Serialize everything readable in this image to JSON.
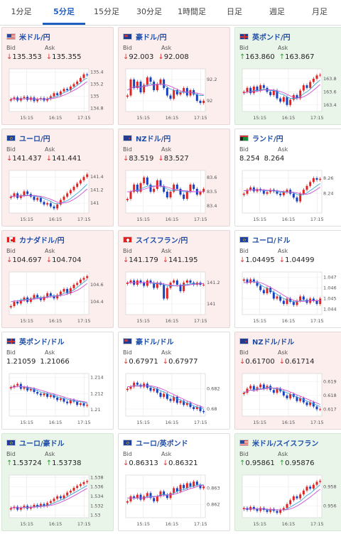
{
  "tabs": [
    "1分足",
    "5分足",
    "15分足",
    "30分足",
    "1時間足",
    "日足",
    "週足",
    "月足"
  ],
  "active_tab": 1,
  "labels": {
    "bid": "Bid",
    "ask": "Ask"
  },
  "x_ticks": [
    "15:15",
    "16:15",
    "17:15"
  ],
  "cards": [
    {
      "pair": "米ドル/円",
      "flag": "us",
      "trend": "down",
      "bid": "135.353",
      "ask": "135.355",
      "bid_dir": "down",
      "ask_dir": "down",
      "chart_data": {
        "type": "candlestick",
        "yticks": [
          "135.4",
          "135.2",
          "135",
          "134.8"
        ],
        "ylim": [
          134.75,
          135.45
        ],
        "close": [
          134.95,
          134.98,
          134.93,
          134.97,
          134.99,
          134.94,
          134.98,
          134.92,
          134.95,
          134.97,
          134.93,
          134.96,
          135.0,
          135.05,
          135.02,
          135.08,
          135.12,
          135.1,
          135.16,
          135.2,
          135.24,
          135.3,
          135.36,
          135.35
        ],
        "ma": [
          134.96,
          134.96,
          134.95,
          134.96,
          134.96,
          134.96,
          134.96,
          134.95,
          134.95,
          134.96,
          134.95,
          134.96,
          134.97,
          134.99,
          135.0,
          135.03,
          135.06,
          135.08,
          135.11,
          135.14,
          135.18,
          135.22,
          135.27,
          135.3
        ]
      }
    },
    {
      "pair": "豪ドル/円",
      "flag": "au",
      "trend": "down",
      "bid": "92.003",
      "ask": "92.008",
      "bid_dir": "down",
      "ask_dir": "down",
      "chart_data": {
        "type": "candlestick",
        "yticks": [
          "92.2",
          "92"
        ],
        "ylim": [
          91.9,
          92.3
        ],
        "close": [
          92.05,
          92.2,
          92.12,
          92.18,
          92.08,
          92.15,
          92.22,
          92.18,
          92.1,
          92.16,
          92.2,
          92.12,
          92.05,
          92.02,
          92.1,
          92.06,
          92.08,
          92.12,
          92.05,
          92.1,
          92.06,
          92.0,
          91.98,
          92.0
        ],
        "ma": [
          92.1,
          92.12,
          92.13,
          92.14,
          92.13,
          92.14,
          92.15,
          92.16,
          92.15,
          92.15,
          92.16,
          92.15,
          92.13,
          92.11,
          92.1,
          92.09,
          92.08,
          92.08,
          92.08,
          92.08,
          92.07,
          92.06,
          92.05,
          92.05
        ]
      }
    },
    {
      "pair": "英ポンド/円",
      "flag": "uk",
      "trend": "up",
      "bid": "163.860",
      "ask": "163.867",
      "bid_dir": "up",
      "ask_dir": "up",
      "chart_data": {
        "type": "candlestick",
        "yticks": [
          "163.8",
          "163.6",
          "163.4"
        ],
        "ylim": [
          163.3,
          163.95
        ],
        "close": [
          163.6,
          163.66,
          163.58,
          163.68,
          163.62,
          163.7,
          163.66,
          163.6,
          163.55,
          163.62,
          163.5,
          163.45,
          163.52,
          163.4,
          163.48,
          163.55,
          163.5,
          163.62,
          163.7,
          163.66,
          163.75,
          163.8,
          163.85,
          163.86
        ],
        "ma": [
          163.58,
          163.6,
          163.6,
          163.62,
          163.62,
          163.63,
          163.64,
          163.63,
          163.62,
          163.62,
          163.6,
          163.57,
          163.56,
          163.52,
          163.5,
          163.5,
          163.5,
          163.53,
          163.57,
          163.6,
          163.64,
          163.69,
          163.74,
          163.78
        ]
      }
    },
    {
      "pair": "ユーロ/円",
      "flag": "eu",
      "trend": "down",
      "bid": "141.437",
      "ask": "141.441",
      "bid_dir": "down",
      "ask_dir": "down",
      "chart_data": {
        "type": "candlestick",
        "yticks": [
          "141.4",
          "141.2",
          "141"
        ],
        "ylim": [
          140.85,
          141.5
        ],
        "close": [
          141.1,
          141.15,
          141.08,
          141.12,
          141.18,
          141.14,
          141.1,
          141.05,
          141.08,
          141.02,
          140.98,
          141.0,
          140.95,
          140.92,
          140.98,
          141.05,
          141.1,
          141.15,
          141.2,
          141.25,
          141.3,
          141.35,
          141.4,
          141.44
        ],
        "ma": [
          141.1,
          141.11,
          141.11,
          141.11,
          141.12,
          141.12,
          141.12,
          141.11,
          141.1,
          141.09,
          141.07,
          141.05,
          141.03,
          141.0,
          140.99,
          141.0,
          141.02,
          141.04,
          141.07,
          141.11,
          141.15,
          141.19,
          141.24,
          141.29
        ]
      }
    },
    {
      "pair": "NZドル/円",
      "flag": "nz",
      "trend": "down",
      "bid": "83.519",
      "ask": "83.527",
      "bid_dir": "down",
      "ask_dir": "down",
      "chart_data": {
        "type": "candlestick",
        "yticks": [
          "83.6",
          "83.5",
          "83.4"
        ],
        "ylim": [
          83.35,
          83.65
        ],
        "close": [
          83.45,
          83.5,
          83.55,
          83.5,
          83.56,
          83.6,
          83.55,
          83.5,
          83.52,
          83.58,
          83.54,
          83.5,
          83.46,
          83.5,
          83.55,
          83.52,
          83.48,
          83.45,
          83.5,
          83.55,
          83.52,
          83.48,
          83.5,
          83.52
        ],
        "ma": [
          83.5,
          83.5,
          83.51,
          83.51,
          83.52,
          83.53,
          83.54,
          83.54,
          83.54,
          83.54,
          83.54,
          83.53,
          83.52,
          83.51,
          83.51,
          83.51,
          83.51,
          83.5,
          83.5,
          83.5,
          83.5,
          83.5,
          83.5,
          83.5
        ]
      }
    },
    {
      "pair": "ランド/円",
      "flag": "za",
      "trend": "flat",
      "bid": "8.254",
      "ask": "8.264",
      "bid_dir": "none",
      "ask_dir": "none",
      "chart_data": {
        "type": "candlestick",
        "yticks": [
          "8.26",
          "8.24"
        ],
        "ylim": [
          8.215,
          8.27
        ],
        "close": [
          8.24,
          8.245,
          8.248,
          8.243,
          8.246,
          8.244,
          8.24,
          8.242,
          8.245,
          8.243,
          8.24,
          8.238,
          8.242,
          8.245,
          8.24,
          8.235,
          8.23,
          8.24,
          8.245,
          8.25,
          8.255,
          8.26,
          8.258,
          8.259
        ],
        "ma": [
          8.244,
          8.244,
          8.245,
          8.245,
          8.245,
          8.245,
          8.244,
          8.244,
          8.244,
          8.244,
          8.243,
          8.242,
          8.242,
          8.242,
          8.242,
          8.241,
          8.239,
          8.238,
          8.239,
          8.241,
          8.244,
          8.247,
          8.25,
          8.253
        ]
      }
    },
    {
      "pair": "カナダドル/円",
      "flag": "ca",
      "trend": "down",
      "bid": "104.697",
      "ask": "104.704",
      "bid_dir": "down",
      "ask_dir": "down",
      "chart_data": {
        "type": "candlestick",
        "yticks": [
          "104.6",
          "104.4"
        ],
        "ylim": [
          104.25,
          104.75
        ],
        "close": [
          104.35,
          104.4,
          104.38,
          104.42,
          104.45,
          104.4,
          104.44,
          104.48,
          104.45,
          104.42,
          104.46,
          104.5,
          104.47,
          104.44,
          104.48,
          104.52,
          104.55,
          104.5,
          104.56,
          104.6,
          104.62,
          104.66,
          104.68,
          104.7
        ],
        "ma": [
          104.4,
          104.41,
          104.41,
          104.42,
          104.43,
          104.43,
          104.43,
          104.44,
          104.45,
          104.45,
          104.45,
          104.46,
          104.47,
          104.47,
          104.47,
          104.48,
          104.5,
          104.51,
          104.52,
          104.54,
          104.57,
          104.6,
          104.63,
          104.66
        ]
      }
    },
    {
      "pair": "スイスフラン/円",
      "flag": "ch",
      "trend": "down",
      "bid": "141.179",
      "ask": "141.195",
      "bid_dir": "down",
      "ask_dir": "down",
      "chart_data": {
        "type": "candlestick",
        "yticks": [
          "141.2",
          "141"
        ],
        "ylim": [
          140.9,
          141.3
        ],
        "close": [
          141.2,
          141.22,
          141.18,
          141.22,
          141.2,
          141.17,
          141.22,
          141.2,
          141.15,
          141.2,
          141.18,
          141.05,
          141.15,
          141.2,
          141.22,
          141.18,
          141.12,
          141.2,
          141.22,
          141.2,
          141.18,
          141.2,
          141.18,
          141.18
        ],
        "ma": [
          141.2,
          141.2,
          141.2,
          141.2,
          141.2,
          141.2,
          141.2,
          141.2,
          141.19,
          141.19,
          141.19,
          141.18,
          141.17,
          141.17,
          141.17,
          141.17,
          141.17,
          141.18,
          141.18,
          141.19,
          141.19,
          141.19,
          141.19,
          141.19
        ]
      }
    },
    {
      "pair": "ユーロ/ドル",
      "flag": "euus",
      "trend": "flat",
      "bid": "1.04495",
      "ask": "1.04499",
      "bid_dir": "down",
      "ask_dir": "down",
      "chart_data": {
        "type": "candlestick",
        "yticks": [
          "1.047",
          "1.046",
          "1.045",
          "1.044"
        ],
        "ylim": [
          1.0435,
          1.0475
        ],
        "close": [
          1.0468,
          1.0465,
          1.0468,
          1.0466,
          1.0462,
          1.0458,
          1.0455,
          1.046,
          1.0456,
          1.045,
          1.0452,
          1.0448,
          1.0445,
          1.045,
          1.0447,
          1.0444,
          1.0448,
          1.0452,
          1.0449,
          1.0446,
          1.045,
          1.0448,
          1.0445,
          1.045
        ],
        "ma": [
          1.0465,
          1.0465,
          1.0466,
          1.0466,
          1.0465,
          1.0463,
          1.0461,
          1.046,
          1.0458,
          1.0456,
          1.0454,
          1.0452,
          1.045,
          1.0449,
          1.0448,
          1.0447,
          1.0447,
          1.0448,
          1.0448,
          1.0448,
          1.0448,
          1.0448,
          1.0448,
          1.0448
        ]
      }
    },
    {
      "pair": "英ポンド/ドル",
      "flag": "ukus",
      "trend": "flat",
      "bid": "1.21059",
      "ask": "1.21066",
      "bid_dir": "none",
      "ask_dir": "none",
      "chart_data": {
        "type": "candlestick",
        "yticks": [
          "1.214",
          "1.212",
          "1.21"
        ],
        "ylim": [
          1.2092,
          1.2145
        ],
        "close": [
          1.2128,
          1.213,
          1.2132,
          1.2126,
          1.2128,
          1.2124,
          1.2126,
          1.2122,
          1.212,
          1.2118,
          1.212,
          1.2116,
          1.2118,
          1.2115,
          1.2112,
          1.2114,
          1.211,
          1.2108,
          1.2112,
          1.211,
          1.2106,
          1.2108,
          1.2105,
          1.2106
        ],
        "ma": [
          1.2128,
          1.2128,
          1.2129,
          1.2129,
          1.2128,
          1.2127,
          1.2126,
          1.2125,
          1.2124,
          1.2122,
          1.2121,
          1.212,
          1.2119,
          1.2118,
          1.2116,
          1.2115,
          1.2114,
          1.2113,
          1.2112,
          1.2111,
          1.211,
          1.211,
          1.2109,
          1.2108
        ]
      }
    },
    {
      "pair": "豪ドル/ドル",
      "flag": "auus",
      "trend": "flat",
      "bid": "0.67971",
      "ask": "0.67977",
      "bid_dir": "down",
      "ask_dir": "down",
      "chart_data": {
        "type": "candlestick",
        "yticks": [
          "0.682",
          "0.68"
        ],
        "ylim": [
          0.6793,
          0.6835
        ],
        "close": [
          0.682,
          0.6822,
          0.6826,
          0.6824,
          0.6822,
          0.6825,
          0.6821,
          0.6818,
          0.682,
          0.6816,
          0.6812,
          0.6815,
          0.681,
          0.6808,
          0.6812,
          0.6806,
          0.6808,
          0.6804,
          0.6806,
          0.6802,
          0.68,
          0.6802,
          0.6798,
          0.6797
        ],
        "ma": [
          0.6822,
          0.6822,
          0.6823,
          0.6823,
          0.6823,
          0.6823,
          0.6823,
          0.6822,
          0.6821,
          0.682,
          0.6818,
          0.6817,
          0.6815,
          0.6813,
          0.6812,
          0.681,
          0.6809,
          0.6807,
          0.6806,
          0.6805,
          0.6803,
          0.6802,
          0.6801,
          0.68
        ]
      }
    },
    {
      "pair": "NZドル/ドル",
      "flag": "nzus",
      "trend": "down",
      "bid": "0.61700",
      "ask": "0.61714",
      "bid_dir": "down",
      "ask_dir": "down",
      "chart_data": {
        "type": "candlestick",
        "yticks": [
          "0.619",
          "0.618",
          "0.617"
        ],
        "ylim": [
          0.6165,
          0.6196
        ],
        "close": [
          0.6182,
          0.6185,
          0.6187,
          0.6184,
          0.6186,
          0.6188,
          0.6185,
          0.6187,
          0.6184,
          0.6182,
          0.6185,
          0.6183,
          0.618,
          0.6178,
          0.6181,
          0.6179,
          0.6176,
          0.6178,
          0.6175,
          0.6173,
          0.6175,
          0.6172,
          0.617,
          0.617
        ],
        "ma": [
          0.6182,
          0.6183,
          0.6184,
          0.6184,
          0.6185,
          0.6185,
          0.6185,
          0.6186,
          0.6186,
          0.6185,
          0.6185,
          0.6184,
          0.6183,
          0.6182,
          0.6181,
          0.618,
          0.6179,
          0.6178,
          0.6177,
          0.6176,
          0.6175,
          0.6174,
          0.6173,
          0.6172
        ]
      }
    },
    {
      "pair": "ユーロ/豪ドル",
      "flag": "euau",
      "trend": "up",
      "bid": "1.53724",
      "ask": "1.53738",
      "bid_dir": "up",
      "ask_dir": "up",
      "chart_data": {
        "type": "candlestick",
        "yticks": [
          "1.538",
          "1.536",
          "1.534",
          "1.532",
          "1.53"
        ],
        "ylim": [
          1.5295,
          1.5385
        ],
        "close": [
          1.5315,
          1.5318,
          1.5312,
          1.5316,
          1.532,
          1.5314,
          1.5318,
          1.5322,
          1.5318,
          1.5324,
          1.532,
          1.5326,
          1.533,
          1.5335,
          1.534,
          1.5336,
          1.5342,
          1.5348,
          1.5352,
          1.5358,
          1.5362,
          1.5366,
          1.537,
          1.5372
        ],
        "ma": [
          1.5316,
          1.5316,
          1.5316,
          1.5316,
          1.5317,
          1.5317,
          1.5317,
          1.5318,
          1.5319,
          1.532,
          1.532,
          1.5321,
          1.5323,
          1.5326,
          1.5329,
          1.5332,
          1.5335,
          1.5339,
          1.5343,
          1.5347,
          1.5351,
          1.5355,
          1.5359,
          1.5363
        ]
      }
    },
    {
      "pair": "ユーロ/英ポンド",
      "flag": "euuk",
      "trend": "flat",
      "bid": "0.86313",
      "ask": "0.86321",
      "bid_dir": "down",
      "ask_dir": "down",
      "chart_data": {
        "type": "candlestick",
        "yticks": [
          "0.863",
          "0.862"
        ],
        "ylim": [
          0.8612,
          0.8638
        ],
        "close": [
          0.8622,
          0.8625,
          0.8624,
          0.8626,
          0.8623,
          0.8625,
          0.8627,
          0.8624,
          0.8622,
          0.8625,
          0.8628,
          0.8626,
          0.8624,
          0.8627,
          0.863,
          0.8628,
          0.8632,
          0.863,
          0.8633,
          0.8631,
          0.8634,
          0.8632,
          0.863,
          0.8631
        ],
        "ma": [
          0.8624,
          0.8624,
          0.8624,
          0.8624,
          0.8624,
          0.8624,
          0.8625,
          0.8625,
          0.8625,
          0.8625,
          0.8626,
          0.8626,
          0.8626,
          0.8626,
          0.8627,
          0.8628,
          0.8629,
          0.8629,
          0.863,
          0.8631,
          0.8631,
          0.8632,
          0.8632,
          0.8632
        ]
      }
    },
    {
      "pair": "米ドル/スイスフラン",
      "flag": "usch",
      "trend": "up",
      "bid": "0.95861",
      "ask": "0.95876",
      "bid_dir": "up",
      "ask_dir": "up",
      "chart_data": {
        "type": "candlestick",
        "yticks": [
          "0.958",
          "0.956"
        ],
        "ylim": [
          0.9548,
          0.9592
        ],
        "close": [
          0.9558,
          0.9556,
          0.9559,
          0.9557,
          0.9555,
          0.9558,
          0.9556,
          0.9554,
          0.9557,
          0.9555,
          0.9553,
          0.9556,
          0.9558,
          0.9562,
          0.9566,
          0.957,
          0.9568,
          0.9572,
          0.9576,
          0.958,
          0.9578,
          0.9582,
          0.9585,
          0.9586
        ],
        "ma": [
          0.9557,
          0.9557,
          0.9557,
          0.9557,
          0.9557,
          0.9557,
          0.9557,
          0.9556,
          0.9556,
          0.9556,
          0.9556,
          0.9556,
          0.9556,
          0.9557,
          0.9559,
          0.9561,
          0.9563,
          0.9565,
          0.9568,
          0.9571,
          0.9573,
          0.9576,
          0.9579,
          0.9582
        ]
      }
    }
  ]
}
